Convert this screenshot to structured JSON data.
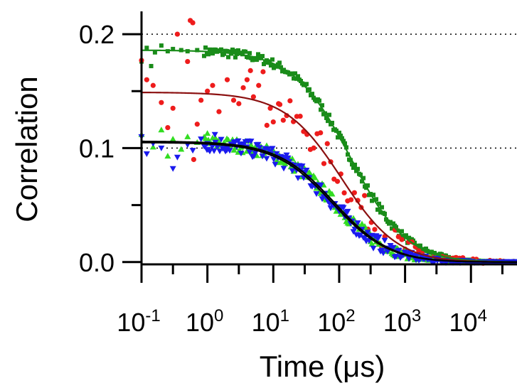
{
  "chart_data": {
    "type": "scatter",
    "xscale": "log",
    "xlim": [
      0.1,
      50000
    ],
    "ylim": [
      -0.002,
      0.22
    ],
    "xlabel": "Time (μs)",
    "ylabel": "Correlation",
    "title": "",
    "grid": {
      "y_dotted_at": [
        0.1,
        0.2
      ]
    },
    "y_ticks": [
      {
        "value": 0.0,
        "label": "0.0"
      },
      {
        "value": 0.1,
        "label": "0.1"
      },
      {
        "value": 0.2,
        "label": "0.2"
      }
    ],
    "y_minor_ticks": [
      0.05,
      0.15
    ],
    "x_ticks": [
      {
        "value": 0.1,
        "base": "10",
        "exp": "-1"
      },
      {
        "value": 1,
        "base": "10",
        "exp": "0"
      },
      {
        "value": 10,
        "base": "10",
        "exp": "1"
      },
      {
        "value": 100,
        "base": "10",
        "exp": "2"
      },
      {
        "value": 1000,
        "base": "10",
        "exp": "3"
      },
      {
        "value": 10000,
        "base": "10",
        "exp": "4"
      }
    ],
    "series": [
      {
        "marker": "square",
        "color": "#1a8c1a",
        "fit_color": "#1a8c1a",
        "fit": {
          "g0": 0.186,
          "tau": 150
        },
        "noise": 0.004,
        "points": [
          [
            0.1,
            0.176
          ],
          [
            0.12,
            0.188
          ],
          [
            0.14,
            0.172
          ],
          [
            0.16,
            0.184
          ],
          [
            0.2,
            0.19
          ],
          [
            0.25,
            0.185
          ],
          [
            0.3,
            0.187
          ],
          [
            0.4,
            0.186
          ],
          [
            0.5,
            0.185
          ],
          [
            0.7,
            0.186
          ]
        ]
      },
      {
        "marker": "circle",
        "color": "#ee1c1c",
        "fit_color": "#8b1010",
        "fit": {
          "g0": 0.149,
          "tau": 110
        },
        "noise": 0.014,
        "points": [
          [
            0.1,
            0.177
          ],
          [
            0.12,
            0.16
          ],
          [
            0.15,
            0.155
          ],
          [
            0.2,
            0.14
          ],
          [
            0.25,
            0.118
          ],
          [
            0.3,
            0.135
          ],
          [
            0.35,
            0.2
          ],
          [
            0.5,
            0.176
          ],
          [
            0.55,
            0.212
          ],
          [
            0.6,
            0.21
          ],
          [
            0.62,
            0.09
          ],
          [
            0.7,
            0.121
          ],
          [
            0.8,
            0.142
          ],
          [
            1.0,
            0.15
          ],
          [
            1.2,
            0.155
          ],
          [
            1.5,
            0.132
          ],
          [
            2.0,
            0.16
          ],
          [
            2.5,
            0.142
          ],
          [
            3.0,
            0.139
          ],
          [
            3.5,
            0.153
          ],
          [
            4.0,
            0.16
          ],
          [
            4.5,
            0.168
          ],
          [
            5.0,
            0.145
          ],
          [
            6.0,
            0.155
          ],
          [
            7.0,
            0.167
          ],
          [
            8.0,
            0.12
          ],
          [
            9.0,
            0.135
          ],
          [
            10.0,
            0.123
          ],
          [
            12.0,
            0.139
          ]
        ]
      },
      {
        "marker": "triangle-up",
        "color": "#33dd22",
        "fit_color": "#000000",
        "fit": {
          "g0": 0.106,
          "tau": 85
        },
        "noise": 0.006,
        "points": [
          [
            0.1,
            0.112
          ],
          [
            0.15,
            0.101
          ],
          [
            0.2,
            0.116
          ],
          [
            0.25,
            0.093
          ],
          [
            0.3,
            0.108
          ],
          [
            0.4,
            0.099
          ],
          [
            0.5,
            0.11
          ],
          [
            0.7,
            0.105
          ],
          [
            1.0,
            0.113
          ],
          [
            1.5,
            0.104
          ]
        ]
      },
      {
        "marker": "triangle-down",
        "color": "#1a1aee",
        "fit_color": "#000000",
        "fit": {
          "g0": 0.105,
          "tau": 80
        },
        "noise": 0.007,
        "points": [
          [
            0.1,
            0.11
          ],
          [
            0.12,
            0.095
          ],
          [
            0.15,
            0.104
          ],
          [
            0.2,
            0.1
          ],
          [
            0.3,
            0.082
          ],
          [
            0.35,
            0.092
          ],
          [
            0.5,
            0.103
          ],
          [
            0.6,
            0.098
          ],
          [
            0.8,
            0.108
          ],
          [
            1.0,
            0.104
          ],
          [
            1.3,
            0.112
          ],
          [
            2.0,
            0.1
          ]
        ]
      }
    ]
  }
}
